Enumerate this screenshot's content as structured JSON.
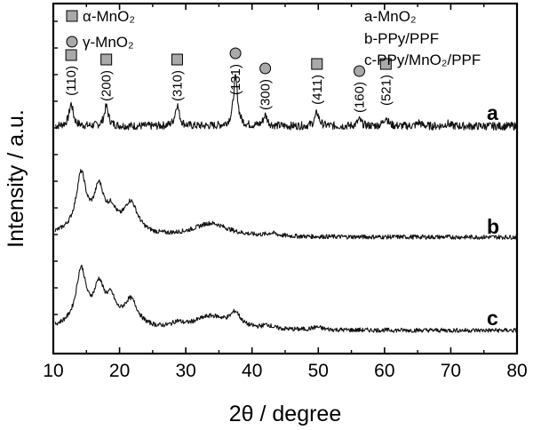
{
  "chart_data": {
    "type": "line",
    "xlabel": "2θ / degree",
    "ylabel": "Intensity / a.u.",
    "xlim": [
      10,
      80
    ],
    "x_ticks": [
      "10",
      "20",
      "30",
      "40",
      "50",
      "60",
      "70",
      "80"
    ],
    "legend_markers": [
      {
        "marker": "square",
        "text": "α-MnO₂"
      },
      {
        "marker": "circle",
        "text": "γ-MnO₂"
      }
    ],
    "legend_series": [
      "a-MnO₂",
      "b-PPy/PPF",
      "c-PPy/MnO₂/PPF"
    ],
    "series": [
      {
        "name": "a",
        "label": "a",
        "baseline": 1.0,
        "peaks": [
          [
            12.7,
            0.25
          ],
          [
            18.0,
            0.22
          ],
          [
            28.7,
            0.24
          ],
          [
            37.5,
            0.55
          ],
          [
            42.0,
            0.12
          ],
          [
            49.8,
            0.15
          ],
          [
            56.2,
            0.07
          ],
          [
            60.2,
            0.1
          ],
          [
            65.2,
            0.04
          ],
          [
            69.5,
            0.03
          ]
        ]
      },
      {
        "name": "b",
        "label": "b",
        "baseline": 1.0,
        "peaks": [
          [
            14.2,
            0.62
          ],
          [
            16.9,
            0.45
          ],
          [
            18.8,
            0.2
          ],
          [
            21.7,
            0.35
          ],
          [
            33.8,
            0.15
          ],
          [
            43.0,
            0.03
          ]
        ]
      },
      {
        "name": "c",
        "label": "c",
        "baseline": 1.0,
        "peaks": [
          [
            14.2,
            0.6
          ],
          [
            16.9,
            0.4
          ],
          [
            18.7,
            0.25
          ],
          [
            21.7,
            0.3
          ],
          [
            28.7,
            0.05
          ],
          [
            33.8,
            0.15
          ],
          [
            37.5,
            0.15
          ],
          [
            42.3,
            0.04
          ],
          [
            49.8,
            0.03
          ]
        ]
      }
    ],
    "peak_annotations": [
      {
        "hkl": "(110)",
        "x": 12.7,
        "marker": "square"
      },
      {
        "hkl": "(200)",
        "x": 18.0,
        "marker": "square"
      },
      {
        "hkl": "(310)",
        "x": 28.7,
        "marker": "square"
      },
      {
        "hkl": "(131)",
        "x": 37.5,
        "marker": "circle"
      },
      {
        "hkl": "(300)",
        "x": 42.0,
        "marker": "circle"
      },
      {
        "hkl": "(411)",
        "x": 49.8,
        "marker": "square"
      },
      {
        "hkl": "(160)",
        "x": 56.2,
        "marker": "circle"
      },
      {
        "hkl": "(521)",
        "x": 60.2,
        "marker": "square"
      }
    ]
  }
}
